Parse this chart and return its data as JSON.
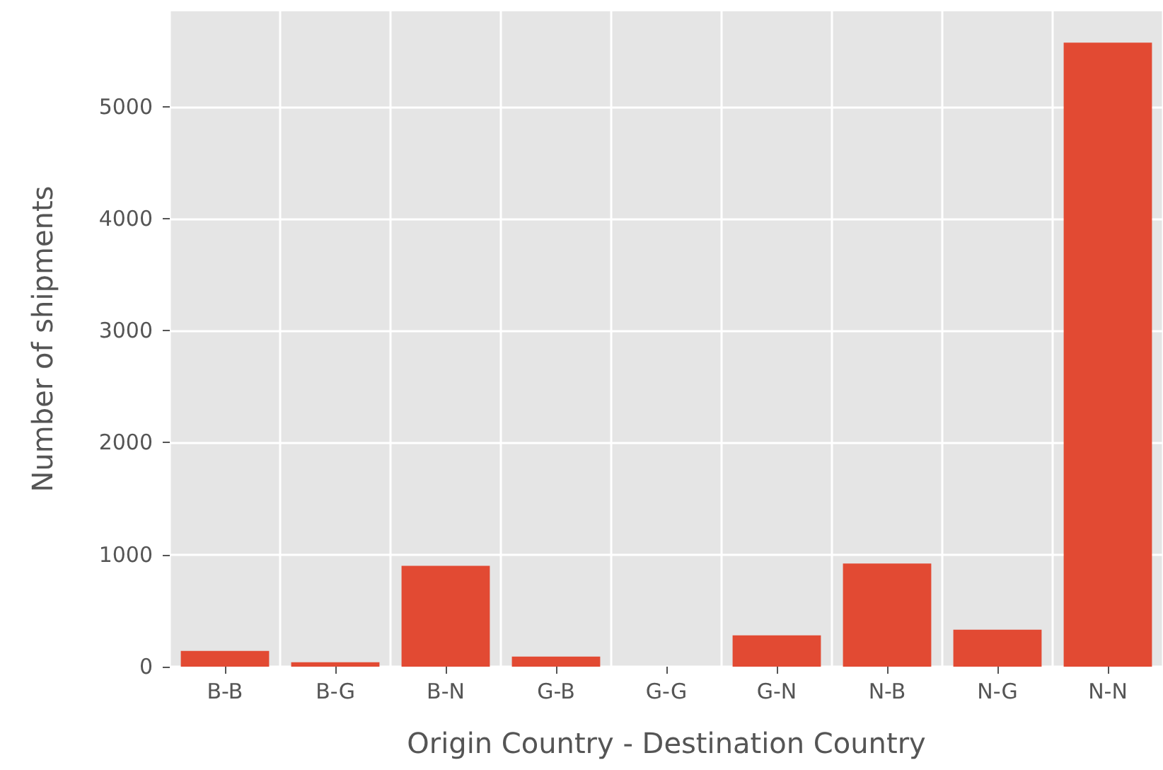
{
  "chart_data": {
    "type": "bar",
    "xlabel": "Origin Country - Destination Country",
    "ylabel": "Number of shipments",
    "categories": [
      "B-B",
      "B-G",
      "B-N",
      "G-B",
      "G-G",
      "G-N",
      "N-B",
      "N-G",
      "N-N"
    ],
    "values": [
      140,
      40,
      900,
      90,
      0,
      280,
      920,
      330,
      5570
    ],
    "color": "#e24a33",
    "ylim": [
      0,
      5850
    ],
    "yticks": [
      0,
      1000,
      2000,
      3000,
      4000,
      5000
    ],
    "grid": true
  }
}
